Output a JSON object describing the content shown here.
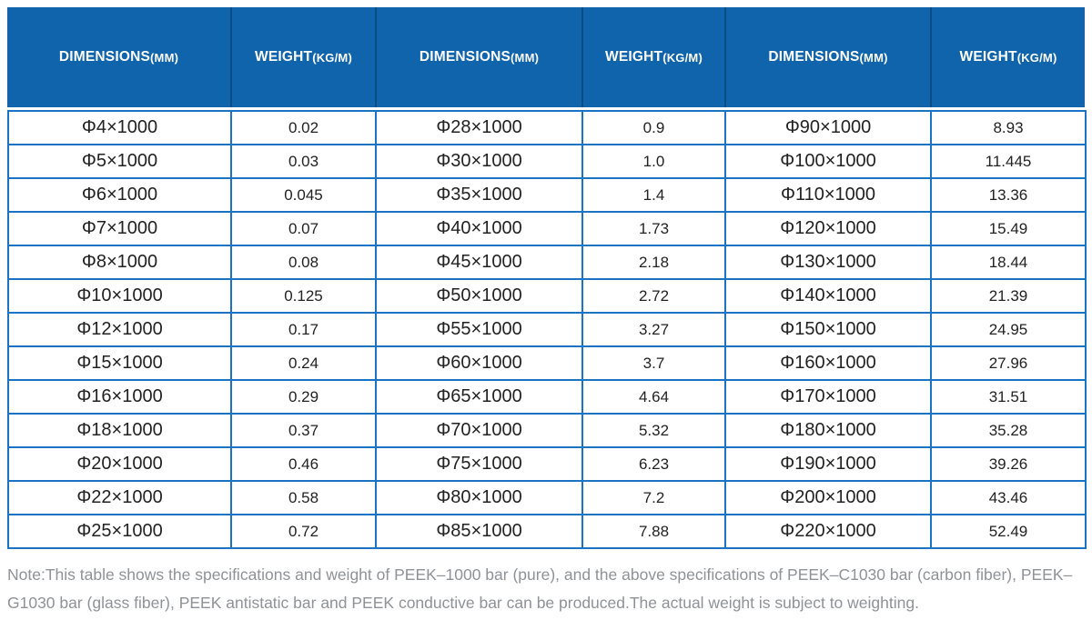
{
  "colors": {
    "header_bg": "#0f64ab",
    "header_divider": "#0a4c84",
    "body_border": "#1b73c3",
    "cell_text": "#222222",
    "note_text": "#8f9296"
  },
  "table": {
    "headers": [
      {
        "label": "DIMENSIONS",
        "unit": "(MM)"
      },
      {
        "label": "WEIGHT",
        "unit": "(KG/M)"
      },
      {
        "label": "DIMENSIONS",
        "unit": "(MM)"
      },
      {
        "label": "WEIGHT",
        "unit": "(KG/M)"
      },
      {
        "label": "DIMENSIONS",
        "unit": "(MM)"
      },
      {
        "label": "WEIGHT",
        "unit": "(KG/M)"
      }
    ],
    "rows": [
      [
        "Φ4×1000",
        "0.02",
        "Φ28×1000",
        "0.9",
        "Φ90×1000",
        "8.93"
      ],
      [
        "Φ5×1000",
        "0.03",
        "Φ30×1000",
        "1.0",
        "Φ100×1000",
        "11.445"
      ],
      [
        "Φ6×1000",
        "0.045",
        "Φ35×1000",
        "1.4",
        "Φ110×1000",
        "13.36"
      ],
      [
        "Φ7×1000",
        "0.07",
        "Φ40×1000",
        "1.73",
        "Φ120×1000",
        "15.49"
      ],
      [
        "Φ8×1000",
        "0.08",
        "Φ45×1000",
        "2.18",
        "Φ130×1000",
        "18.44"
      ],
      [
        "Φ10×1000",
        "0.125",
        "Φ50×1000",
        "2.72",
        "Φ140×1000",
        "21.39"
      ],
      [
        "Φ12×1000",
        "0.17",
        "Φ55×1000",
        "3.27",
        "Φ150×1000",
        "24.95"
      ],
      [
        "Φ15×1000",
        "0.24",
        "Φ60×1000",
        "3.7",
        "Φ160×1000",
        "27.96"
      ],
      [
        "Φ16×1000",
        "0.29",
        "Φ65×1000",
        "4.64",
        "Φ170×1000",
        "31.51"
      ],
      [
        "Φ18×1000",
        "0.37",
        "Φ70×1000",
        "5.32",
        "Φ180×1000",
        "35.28"
      ],
      [
        "Φ20×1000",
        "0.46",
        "Φ75×1000",
        "6.23",
        "Φ190×1000",
        "39.26"
      ],
      [
        "Φ22×1000",
        "0.58",
        "Φ80×1000",
        "7.2",
        "Φ200×1000",
        "43.46"
      ],
      [
        "Φ25×1000",
        "0.72",
        "Φ85×1000",
        "7.88",
        "Φ220×1000",
        "52.49"
      ]
    ]
  },
  "note": {
    "text": "Note:This table shows the specifications and weight of PEEK–1000 bar (pure), and the above specifications of PEEK–C1030 bar (carbon fiber), PEEK–G1030 bar (glass fiber), PEEK antistatic bar and PEEK conductive bar can be produced.The actual weight is subject to weighting."
  }
}
